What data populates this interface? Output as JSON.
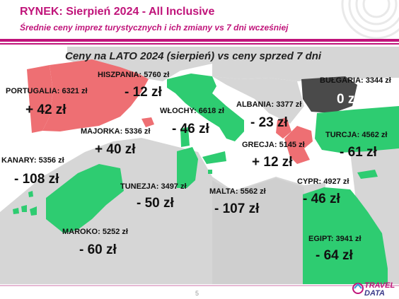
{
  "header": {
    "title": "RYNEK: Sierpień 2024 - All Inclusive",
    "subtitle": "Średnie ceny imprez turystycznych i ich zmiany vs 7 dni wcześniej"
  },
  "chart": {
    "title": "Ceny na LATO 2024 (sierpień) vs ceny sprzed 7 dni"
  },
  "colors": {
    "brand": "#c0147a",
    "increase": "#ee6f73",
    "decrease": "#2ecc71",
    "no_change": "#4a4a4a"
  },
  "destinations": {
    "portugalia": {
      "label": "PORTUGALIA:",
      "price": "6321 zł",
      "change": "+ 42 zł"
    },
    "hiszpania": {
      "label": "HISZPANIA:",
      "price": "5760 zł",
      "change": "- 12 zł"
    },
    "wlochy": {
      "label": "WŁOCHY:",
      "price": "6618 zł",
      "change": "- 46 zł"
    },
    "albania": {
      "label": "ALBANIA:",
      "price": "3377 zł",
      "change": "- 23 zł"
    },
    "bulgaria": {
      "label": "BUŁGARIA:",
      "price": "3344 zł",
      "change": "0 zł"
    },
    "majorka": {
      "label": "MAJORKA:",
      "price": "5336 zł",
      "change": "+ 40 zł"
    },
    "turcja": {
      "label": "TURCJA:",
      "price": "4562 zł",
      "change": "- 61 zł"
    },
    "grecja": {
      "label": "GRECJA:",
      "price": "5145 zł",
      "change": "+ 12 zł"
    },
    "kanary": {
      "label": "KANARY:",
      "price": "5356 zł",
      "change": "- 108 zł"
    },
    "tunezja": {
      "label": "TUNEZJA:",
      "price": "3497 zł",
      "change": "- 50 zł"
    },
    "malta": {
      "label": "MALTA:",
      "price": "5562 zł",
      "change": "- 107 zł"
    },
    "cypr": {
      "label": "CYPR:",
      "price": "4927 zł",
      "change": "- 46 zł"
    },
    "maroko": {
      "label": "MAROKO:",
      "price": "5252 zł",
      "change": "- 60 zł"
    },
    "egipt": {
      "label": "EGIPT:",
      "price": "3941 zł",
      "change": "- 64 zł"
    }
  },
  "footer": {
    "page_number": "5",
    "logo_line1": "TRAVEL",
    "logo_line2": "DATA"
  }
}
